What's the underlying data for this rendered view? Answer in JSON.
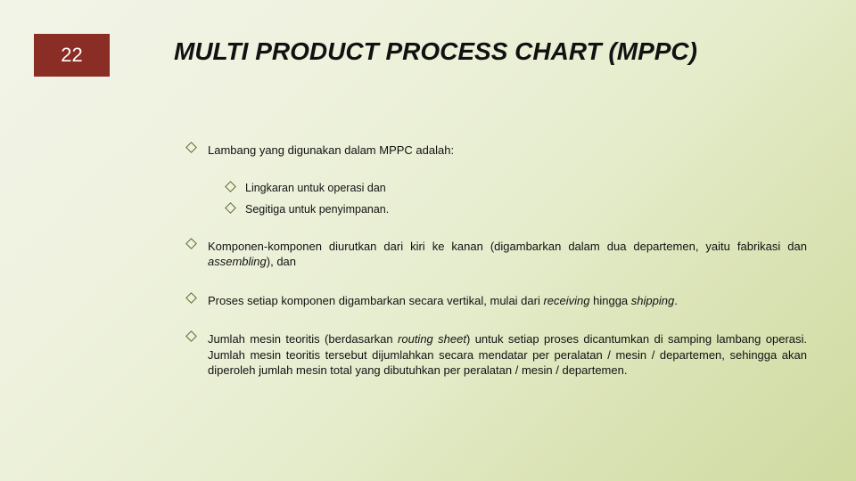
{
  "page_number": "22",
  "title": "MULTI PRODUCT PROCESS CHART (MPPC)",
  "bullets": {
    "b1": "Lambang yang digunakan dalam MPPC adalah:",
    "b1a": "Lingkaran untuk operasi dan",
    "b1b": "Segitiga untuk penyimpanan.",
    "b2_pre": "Komponen-komponen diurutkan dari kiri ke kanan (digambarkan dalam dua departemen, yaitu fabrikasi dan ",
    "b2_it": "assembling",
    "b2_post": "), dan",
    "b3_pre": "Proses setiap komponen digambarkan secara vertikal, mulai dari ",
    "b3_it1": "receiving",
    "b3_mid": " hingga ",
    "b3_it2": "shipping",
    "b3_post": ".",
    "b4_pre": "Jumlah mesin teoritis (berdasarkan ",
    "b4_it": "routing sheet",
    "b4_post": ") untuk setiap proses dicantumkan di samping lambang operasi. Jumlah mesin teoritis tersebut dijumlahkan secara mendatar per peralatan / mesin / departemen, sehingga akan diperoleh jumlah mesin total yang dibutuhkan per peralatan / mesin / departemen."
  },
  "colors": {
    "badge_bg": "#8a2d24",
    "badge_text": "#ffffff",
    "text": "#111111",
    "diamond_border": "#5a6a2f"
  },
  "fontsize": {
    "title": 28,
    "page_number": 22,
    "body": 13,
    "sub": 12.5
  }
}
